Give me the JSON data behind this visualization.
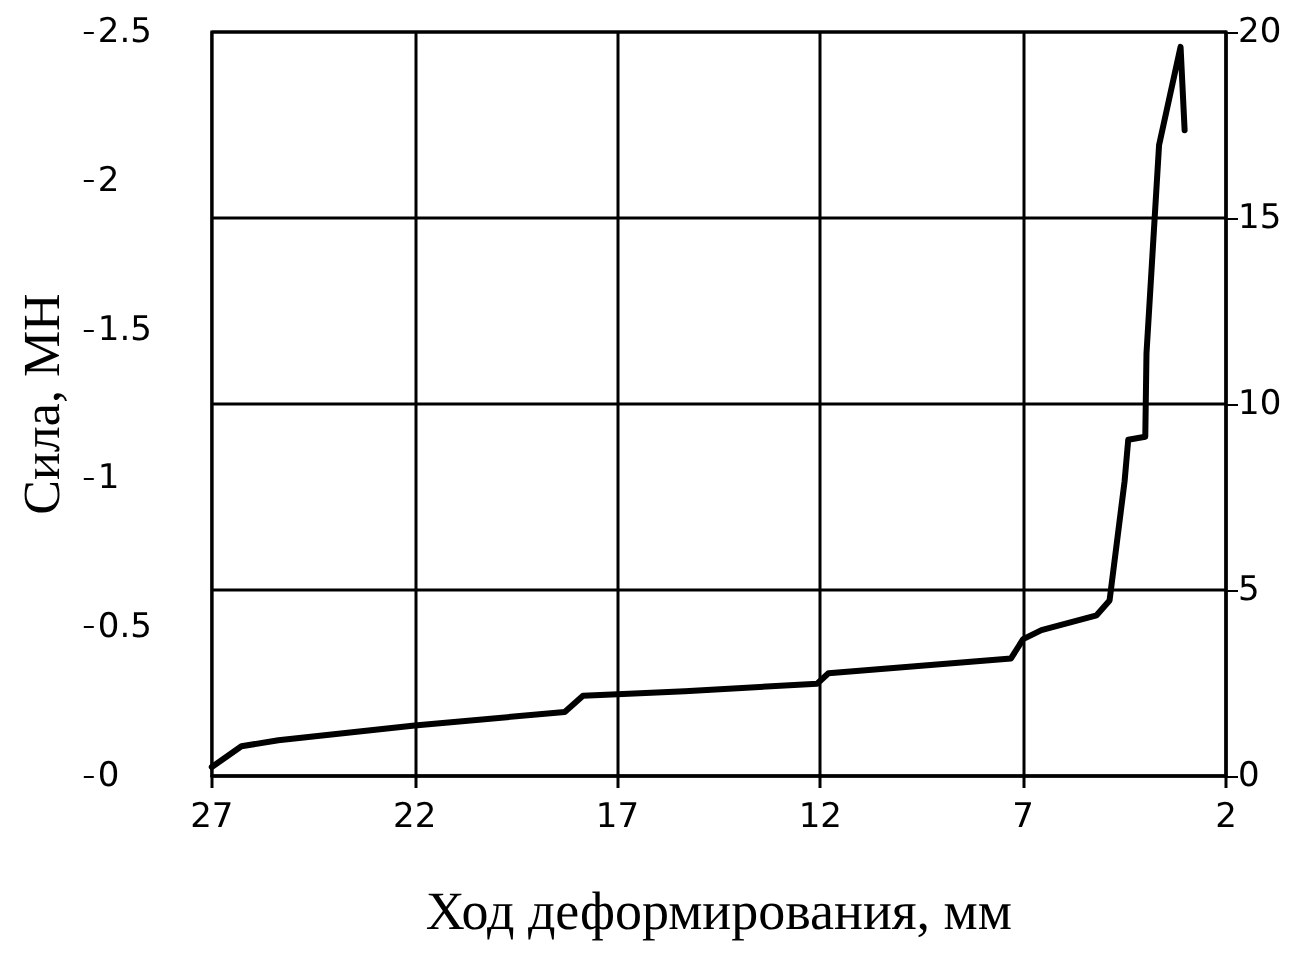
{
  "chart_data": {
    "type": "line",
    "xlabel": "Ход деформирования, мм",
    "ylabel": "Сила, МН",
    "x": [
      27,
      26.27,
      25.36,
      22,
      18.3,
      17.85,
      17,
      15.34,
      12.08,
      11.8,
      7.3,
      7.0,
      6.55,
      5.19,
      4.87,
      4.5,
      4.41,
      3.99,
      3.96,
      3.65,
      3.12,
      3.02
    ],
    "series": [
      {
        "color": "#000000",
        "values": [
          0.03,
          0.1,
          0.12,
          0.17,
          0.215,
          0.27,
          0.275,
          0.285,
          0.31,
          0.345,
          0.395,
          0.46,
          0.49,
          0.54,
          0.59,
          0.99,
          1.13,
          1.14,
          1.42,
          2.12,
          2.45,
          2.17
        ]
      }
    ],
    "xlim": [
      27,
      2
    ],
    "xticks": [
      27,
      22,
      17,
      12,
      7,
      2
    ],
    "ylim": [
      0,
      2.5
    ],
    "yticks": [
      0,
      0.5,
      1,
      1.5,
      2,
      2.5
    ],
    "y2lim": [
      0,
      20
    ],
    "y2ticks": [
      0,
      5,
      10,
      15,
      20
    ],
    "grid": true,
    "marker": "none",
    "line_style": "solid"
  }
}
